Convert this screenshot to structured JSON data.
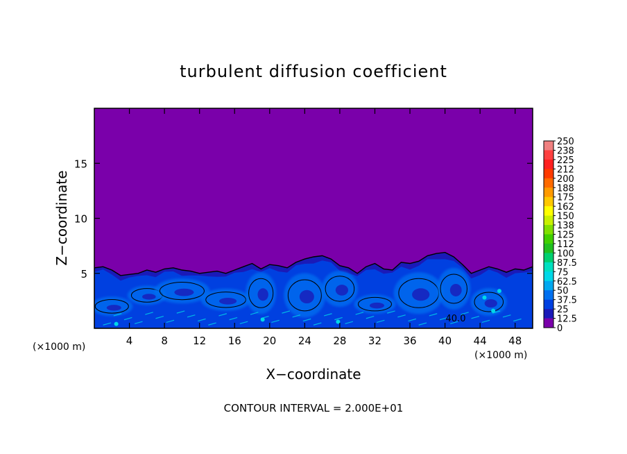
{
  "chart_data": {
    "type": "heatmap",
    "title": "turbulent diffusion coefficient",
    "xlabel": "X−coordinate",
    "ylabel": "Z−coordinate",
    "x_unit_left": "(×1000 m)",
    "x_unit_right": "(×1000 m)",
    "xlim": [
      0,
      50
    ],
    "ylim": [
      0,
      20
    ],
    "x_ticks": [
      4,
      8,
      12,
      16,
      20,
      24,
      28,
      32,
      36,
      40,
      44,
      48
    ],
    "x_tick_labels": [
      "4",
      "8",
      "12",
      "16",
      "20",
      "24",
      "28",
      "32",
      "36",
      "40",
      "44",
      "48"
    ],
    "y_ticks": [
      5,
      10,
      15
    ],
    "y_tick_labels": [
      "5",
      "10",
      "15"
    ],
    "background_value": 0,
    "turbulent_layer_top_profile": {
      "x": [
        0,
        1,
        2,
        3,
        4,
        5,
        6,
        7,
        8,
        9,
        10,
        11,
        12,
        13,
        14,
        15,
        16,
        17,
        18,
        19,
        20,
        21,
        22,
        23,
        24,
        25,
        26,
        27,
        28,
        29,
        30,
        31,
        32,
        33,
        34,
        35,
        36,
        37,
        38,
        39,
        40,
        41,
        42,
        43,
        44,
        45,
        46,
        47,
        48,
        49,
        50
      ],
      "z": [
        5.5,
        5.6,
        5.3,
        4.8,
        4.9,
        5.0,
        5.3,
        5.1,
        5.4,
        5.5,
        5.3,
        5.2,
        5.0,
        5.1,
        5.2,
        5.0,
        5.3,
        5.6,
        5.9,
        5.4,
        5.8,
        5.7,
        5.5,
        6.0,
        6.3,
        6.5,
        6.6,
        6.3,
        5.7,
        5.5,
        5.0,
        5.6,
        5.9,
        5.4,
        5.3,
        6.0,
        5.9,
        6.1,
        6.6,
        6.8,
        6.9,
        6.5,
        5.8,
        5.0,
        5.3,
        5.6,
        5.4,
        5.1,
        5.4,
        5.3,
        5.6
      ]
    },
    "contour_label": "40.0",
    "contour_interval_text": "CONTOUR INTERVAL = 2.000E+01",
    "colorbar": {
      "labels": [
        "250",
        "238",
        "225",
        "212",
        "200",
        "188",
        "175",
        "162",
        "150",
        "138",
        "125",
        "112",
        "100",
        "87.5",
        "75",
        "62.5",
        "50",
        "37.5",
        "25",
        "12.5",
        "0"
      ],
      "colors": [
        "#f08080",
        "#ff4040",
        "#ff2020",
        "#ff3a00",
        "#ff6a00",
        "#ff9a00",
        "#ffc800",
        "#ffff00",
        "#c8f000",
        "#80e000",
        "#40d000",
        "#20c020",
        "#00d070",
        "#00e0c0",
        "#00d8e8",
        "#00a8f0",
        "#0070f0",
        "#0040e0",
        "#1a1ab8",
        "#7a00aa"
      ]
    },
    "colors": {
      "background": "#7a00aa",
      "low": "#1a1ab8",
      "mid": "#0040e0",
      "high": "#0070f0",
      "peak": "#00d8e8",
      "contour": "#000000"
    },
    "grid": false,
    "legend_placement": "right"
  }
}
